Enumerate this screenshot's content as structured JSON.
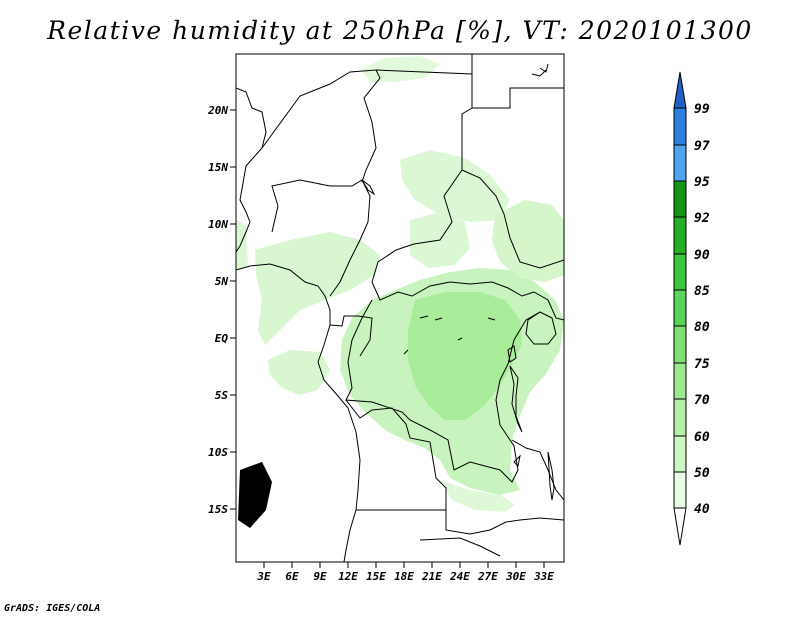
{
  "title": "Relative humidity at 250hPa [%], VT: 2020101300",
  "footer": "GrADS: IGES/COLA",
  "map": {
    "lon_labels": [
      "3E",
      "6E",
      "9E",
      "12E",
      "15E",
      "18E",
      "21E",
      "24E",
      "27E",
      "30E",
      "33E"
    ],
    "lat_labels": [
      "20N",
      "15N",
      "10N",
      "5N",
      "EQ",
      "5S",
      "10S",
      "15S"
    ],
    "lon_range": [
      0,
      35
    ],
    "lat_range": [
      -20,
      25
    ]
  },
  "colorbar": {
    "levels": [
      "40",
      "50",
      "60",
      "70",
      "75",
      "80",
      "85",
      "90",
      "92",
      "95",
      "97",
      "99"
    ],
    "colors": [
      "#ffffff",
      "#e8fbe4",
      "#cdf5c4",
      "#b4efa6",
      "#9ce88e",
      "#7edf72",
      "#58d45a",
      "#3cc43c",
      "#25ad25",
      "#139613",
      "#4da3ef",
      "#2a7fe0",
      "#1f60c4"
    ]
  }
}
